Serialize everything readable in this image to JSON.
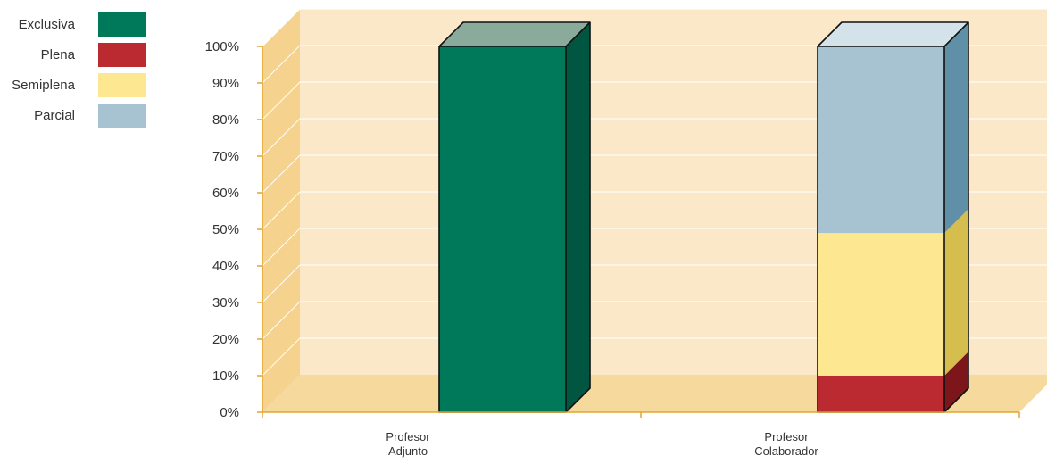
{
  "chart_data": {
    "type": "bar",
    "stacked": true,
    "three_d": true,
    "categories": [
      [
        "Profesor",
        "Adjunto"
      ],
      [
        "Profesor",
        "Colaborador"
      ]
    ],
    "series": [
      {
        "name": "Exclusiva",
        "values": [
          100,
          0
        ]
      },
      {
        "name": "Plena",
        "values": [
          0,
          10
        ]
      },
      {
        "name": "Semiplena",
        "values": [
          0,
          39
        ]
      },
      {
        "name": "Parcial",
        "values": [
          0,
          51
        ]
      }
    ],
    "ylim": [
      0,
      100
    ],
    "yticks": [
      "0%",
      "10%",
      "20%",
      "30%",
      "40%",
      "50%",
      "60%",
      "70%",
      "80%",
      "90%",
      "100%"
    ],
    "grid": true,
    "legend_position": "top-left"
  },
  "colors": {
    "series": [
      {
        "front": "#00795b",
        "top": "#8aab9c",
        "side": "#005640"
      },
      {
        "front": "#bb2a31",
        "top": "#bb2a31",
        "side": "#7d161a"
      },
      {
        "front": "#fde891",
        "top": "#fde891",
        "side": "#d5bd4e"
      },
      {
        "front": "#a7c3d2",
        "top": "#d4e3ea",
        "side": "#5f90a7"
      }
    ],
    "wall": "#fae8c9",
    "side_wall": "#f5d28d",
    "floor": "#f5d99d",
    "axis": "#e0a630",
    "grid": "#ffffff"
  }
}
